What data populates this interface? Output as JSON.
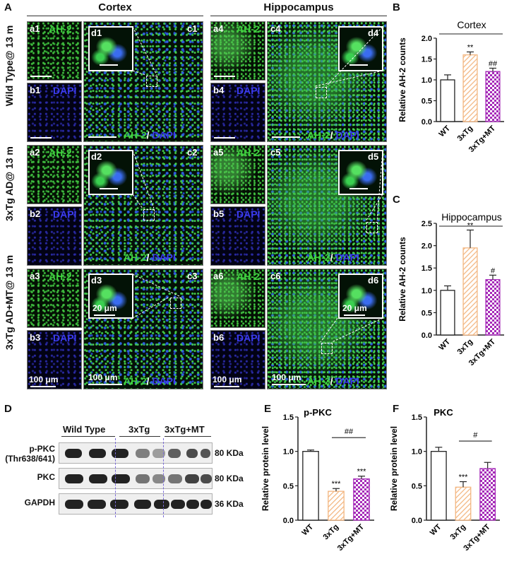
{
  "panel_labels": {
    "A": "A",
    "B": "B",
    "C": "C",
    "D": "D",
    "E": "E",
    "F": "F"
  },
  "regions": {
    "cortex": "Cortex",
    "hippocampus": "Hippocampus"
  },
  "row_labels": [
    "Wild Type@ 13 m",
    "3xTg AD@ 13 m",
    "3xTg AD+MT@ 13 m"
  ],
  "tiles": {
    "a1": "a1",
    "a2": "a2",
    "a3": "a3",
    "a4": "a4",
    "a5": "a5",
    "a6": "a6",
    "b1": "b1",
    "b2": "b2",
    "b3": "b3",
    "b4": "b4",
    "b5": "b5",
    "b6": "b6",
    "c1": "c1",
    "c2": "c2",
    "c3": "c3",
    "c4": "c4",
    "c5": "c5",
    "c6": "c6",
    "d1": "d1",
    "d2": "d2",
    "d3": "d3",
    "d4": "d4",
    "d5": "d5",
    "d6": "d6"
  },
  "stain": {
    "ah2": "AH-2",
    "dapi": "DAPI",
    "merge_a": "AH-2",
    "merge_sep": "/ ",
    "merge_b": "DAPI"
  },
  "scale": {
    "small": "100 μm",
    "large": "100 μm",
    "inset": "20 μm"
  },
  "blot": {
    "groups": [
      "Wild Type",
      "3xTg",
      "3xTg+MT"
    ],
    "rows": [
      "p-PKC\n(Thr638/641)",
      "PKC",
      "GAPDH"
    ],
    "kda": [
      "80 KDa",
      "80 KDa",
      "36 KDa"
    ]
  },
  "colors": {
    "wt": "#ffffff",
    "tg": "#f3b680",
    "mt": "#a52ab8",
    "green": "#3fd23f",
    "blue": "#3b3bf0"
  },
  "chart_data": [
    {
      "id": "B",
      "type": "bar",
      "title": "Cortex",
      "ylabel": "Relative AH-2 counts",
      "categories": [
        "WT",
        "3xTg",
        "3xTg+MT"
      ],
      "values": [
        1.0,
        1.6,
        1.2
      ],
      "errors": [
        0.12,
        0.07,
        0.08
      ],
      "ylim": [
        0,
        2.0
      ],
      "yticks": [
        "0.0",
        "0.5",
        "1.0",
        "1.5",
        "2.0"
      ],
      "annotations": [
        "",
        "**",
        "##"
      ]
    },
    {
      "id": "C",
      "type": "bar",
      "title": "Hippocampus",
      "ylabel": "Relative AH-2 counts",
      "categories": [
        "WT",
        "3xTg",
        "3xTg+MT"
      ],
      "values": [
        1.0,
        1.95,
        1.24
      ],
      "errors": [
        0.1,
        0.4,
        0.1
      ],
      "ylim": [
        0,
        2.5
      ],
      "yticks": [
        "0.0",
        "0.5",
        "1.0",
        "1.5",
        "2.0",
        "2.5"
      ],
      "annotations": [
        "",
        "**",
        "#"
      ]
    },
    {
      "id": "E",
      "type": "bar",
      "title": "p-PKC",
      "ylabel": "Relative protein level",
      "categories": [
        "WT",
        "3xTg",
        "3xTg+MT"
      ],
      "values": [
        1.0,
        0.42,
        0.6
      ],
      "errors": [
        0.02,
        0.04,
        0.04
      ],
      "ylim": [
        0,
        1.5
      ],
      "yticks": [
        "0.0",
        "0.5",
        "1.0",
        "1.5"
      ],
      "annotations": [
        "",
        "***",
        "***"
      ],
      "bracket": "##"
    },
    {
      "id": "F",
      "type": "bar",
      "title": "PKC",
      "ylabel": "Relative protein level",
      "categories": [
        "WT",
        "3xTg",
        "3xTg+MT"
      ],
      "values": [
        1.0,
        0.48,
        0.75
      ],
      "errors": [
        0.06,
        0.08,
        0.09
      ],
      "ylim": [
        0,
        1.5
      ],
      "yticks": [
        "0.0",
        "0.5",
        "1.0",
        "1.5"
      ],
      "annotations": [
        "",
        "***",
        ""
      ],
      "bracket": "#"
    }
  ]
}
